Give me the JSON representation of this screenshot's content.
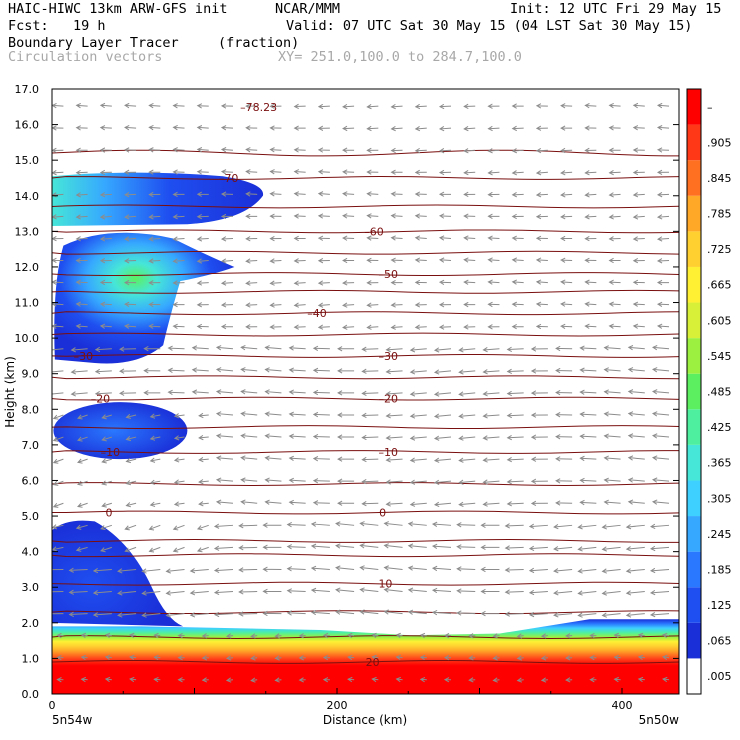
{
  "header": {
    "model_title": "HAIC-HIWC 13km ARW-GFS init",
    "org": "NCAR/MMM",
    "init": "Init: 12 UTC Fri 29 May 15",
    "fcst": "Fcst:   19 h",
    "valid": "Valid: 07 UTC Sat 30 May 15 (04 LST Sat 30 May 15)",
    "field_name": "Boundary Layer Tracer",
    "field_units": "(fraction)",
    "vector_name": "Circulation vectors",
    "cross_section": "XY= 251.0,100.0 to 284.7,100.0"
  },
  "chart_data": {
    "type": "heatmap",
    "xlabel": "Distance (km)",
    "ylabel": "Height (km)",
    "xlim": [
      0,
      440
    ],
    "ylim": [
      0,
      17
    ],
    "x_ticks": [
      0,
      200,
      400
    ],
    "y_ticks": [
      "0.0",
      "1.0",
      "2.0",
      "3.0",
      "4.0",
      "5.0",
      "6.0",
      "7.0",
      "8.0",
      "9.0",
      "10.0",
      "11.0",
      "12.0",
      "13.0",
      "14.0",
      "15.0",
      "16.0",
      "17.0"
    ],
    "x_start_label": "5n54w",
    "x_end_label": "5n50w",
    "colorbar": {
      "labels": [
        ".005",
        ".065",
        ".125",
        ".185",
        ".245",
        ".305",
        ".365",
        ".425",
        ".485",
        ".545",
        ".605",
        ".665",
        ".725",
        ".785",
        ".845",
        ".905",
        "–"
      ],
      "colors": [
        "#ffffff",
        "#1a2fd8",
        "#1f4ff0",
        "#2a78ff",
        "#36a8ff",
        "#3ed0ff",
        "#46e6d8",
        "#4ef0a0",
        "#5cf060",
        "#9cf040",
        "#d8f038",
        "#fff034",
        "#ffd030",
        "#ffa828",
        "#ff7020",
        "#ff3818",
        "#ff0000"
      ]
    },
    "tracer_regions": [
      {
        "name": "lower boundary layer",
        "x_range": [
          0,
          440
        ],
        "top_km": [
          1.9,
          1.9,
          1.85,
          1.8,
          1.65,
          1.7,
          2.1,
          2.1
        ],
        "max_value": 0.99
      },
      {
        "name": "low plume left",
        "x_range": [
          0,
          90
        ],
        "z_range": [
          2.0,
          4.9
        ],
        "max_value": 0.1
      },
      {
        "name": "mid plume",
        "x_range": [
          15,
          95
        ],
        "z_range": [
          6.6,
          8.3
        ],
        "max_value": 0.08
      },
      {
        "name": "upper plume",
        "x_range": [
          0,
          125
        ],
        "z_range": [
          9.3,
          13.1
        ],
        "max_value": 0.5
      },
      {
        "name": "anvil plume",
        "x_range": [
          0,
          150
        ],
        "z_range": [
          13.2,
          14.6
        ],
        "max_value": 0.35
      }
    ],
    "contours": {
      "name": "temperature (C)",
      "levels": [
        20,
        10,
        0,
        -10,
        -20,
        -30,
        -40,
        -50,
        -60,
        -70,
        -78.23
      ],
      "labels": [
        {
          "text": "20",
          "x_km": 225,
          "z_km": 0.9
        },
        {
          "text": "10",
          "x_km": 234,
          "z_km": 3.1
        },
        {
          "text": "0",
          "x_km": 232,
          "z_km": 5.1
        },
        {
          "text": "0",
          "x_km": 40,
          "z_km": 5.1
        },
        {
          "text": "–10",
          "x_km": 236,
          "z_km": 6.8
        },
        {
          "text": "–10",
          "x_km": 41,
          "z_km": 6.8
        },
        {
          "text": "–20",
          "x_km": 236,
          "z_km": 8.3
        },
        {
          "text": "–20",
          "x_km": 34,
          "z_km": 8.3
        },
        {
          "text": "–30",
          "x_km": 236,
          "z_km": 9.5
        },
        {
          "text": "–30",
          "x_km": 22,
          "z_km": 9.5
        },
        {
          "text": "–40",
          "x_km": 186,
          "z_km": 10.7
        },
        {
          "text": "–50",
          "x_km": 236,
          "z_km": 11.8
        },
        {
          "text": "–60",
          "x_km": 226,
          "z_km": 13.0
        },
        {
          "text": "–70",
          "x_km": 124,
          "z_km": 14.5
        },
        {
          "text": "–78.23",
          "x_km": 145,
          "z_km": 16.5
        }
      ]
    },
    "vectors": {
      "description": "Circulation vectors (mostly westward upper/mid levels)",
      "predominant_direction": "west"
    }
  }
}
